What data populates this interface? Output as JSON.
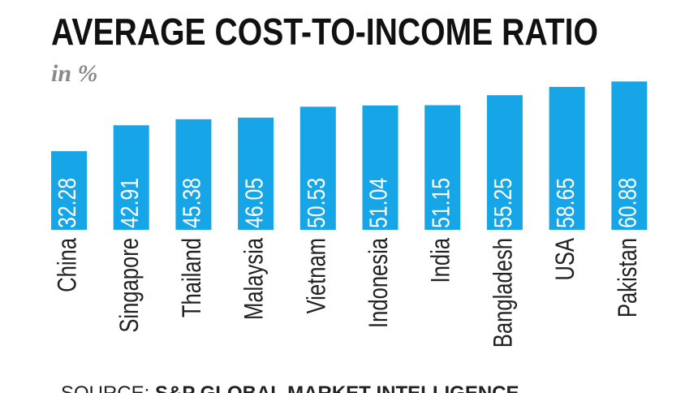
{
  "chart_data": {
    "type": "bar",
    "title": "AVERAGE COST-TO-INCOME RATIO",
    "subtitle": "in %",
    "categories": [
      "China",
      "Singapore",
      "Thailand",
      "Malaysia",
      "Vietnam",
      "Indonesia",
      "India",
      "Bangladesh",
      "USA",
      "Pakistan"
    ],
    "values": [
      32.28,
      42.91,
      45.38,
      46.05,
      50.53,
      51.04,
      51.15,
      55.25,
      58.65,
      60.88
    ],
    "color": "#16a6e8",
    "source_label": "SOURCE:",
    "source": "S&P GLOBAL MARKET INTELLIGENCE"
  }
}
